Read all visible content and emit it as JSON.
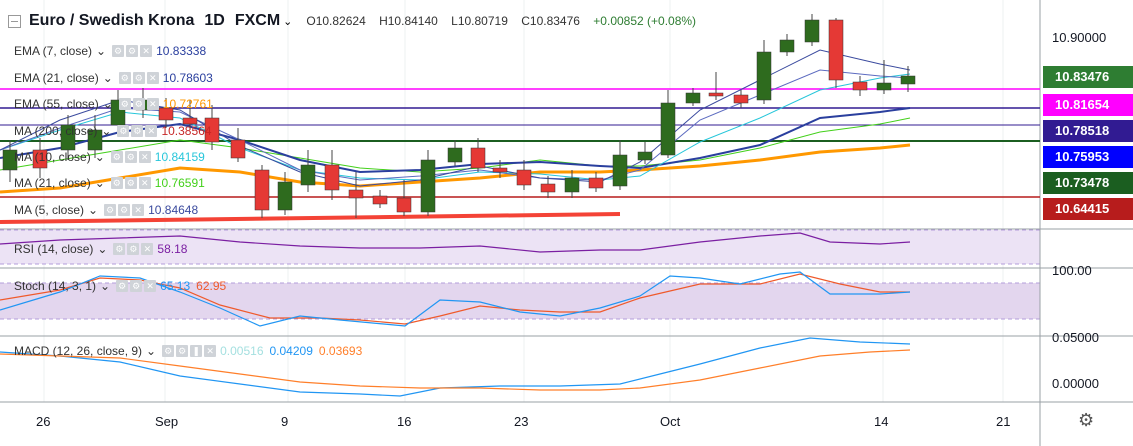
{
  "header": {
    "title": "Euro / Swedish Krona",
    "interval": "1D",
    "source": "FXCM",
    "open": "O10.82624",
    "high": "H10.84140",
    "low": "L10.80719",
    "close": "C10.83476",
    "change": "+0.00852 (+0.08%)"
  },
  "indicators": [
    {
      "name": "EMA (7, close)",
      "value": "10.83338",
      "color": "#2a3f9e"
    },
    {
      "name": "EMA (21, close)",
      "value": "10.78603",
      "color": "#2a3f9e"
    },
    {
      "name": "EMA (55, close)",
      "value": "10.72761",
      "color": "#ff9800"
    },
    {
      "name": "MA (200, close)",
      "value": "10.38564",
      "color": "#c62828"
    },
    {
      "name": "MA (10, close)",
      "value": "10.84159",
      "color": "#26c6da"
    },
    {
      "name": "MA (21, close)",
      "value": "10.76591",
      "color": "#43d01a"
    },
    {
      "name": "MA (5, close)",
      "value": "10.84648",
      "color": "#3a4a9e"
    }
  ],
  "rsi": {
    "name": "RSI (14, close)",
    "value": "58.18",
    "color": "#7b1fa2"
  },
  "stoch": {
    "name": "Stoch (14, 3, 1)",
    "k": "65.13",
    "d": "62.95",
    "kcolor": "#2196f3",
    "dcolor": "#ef5a2c"
  },
  "macd": {
    "name": "MACD (12, 26, close, 9)",
    "hist": "0.00516",
    "macd": "0.04209",
    "signal": "0.03693",
    "hcolor": "#a5e0e0",
    "mcolor": "#2196f3",
    "scolor": "#ff7f2a"
  },
  "price_axis": {
    "ticks": [
      "10.90000"
    ],
    "tags": [
      {
        "label": "10.83476",
        "color": "#2e7d32"
      },
      {
        "label": "10.81654",
        "color": "#ff00ff"
      },
      {
        "label": "10.78518",
        "color": "#311b92"
      },
      {
        "label": "10.75953",
        "color": "#0000ff"
      },
      {
        "label": "10.73478",
        "color": "#1b5e20"
      },
      {
        "label": "10.64415",
        "color": "#b71c1c"
      }
    ]
  },
  "stoch_axis": "100.00",
  "macd_axis": [
    "0.05000",
    "0.00000"
  ],
  "time_axis": [
    "26",
    "Sep",
    "9",
    "16",
    "23",
    "Oct",
    "14",
    "21"
  ]
}
